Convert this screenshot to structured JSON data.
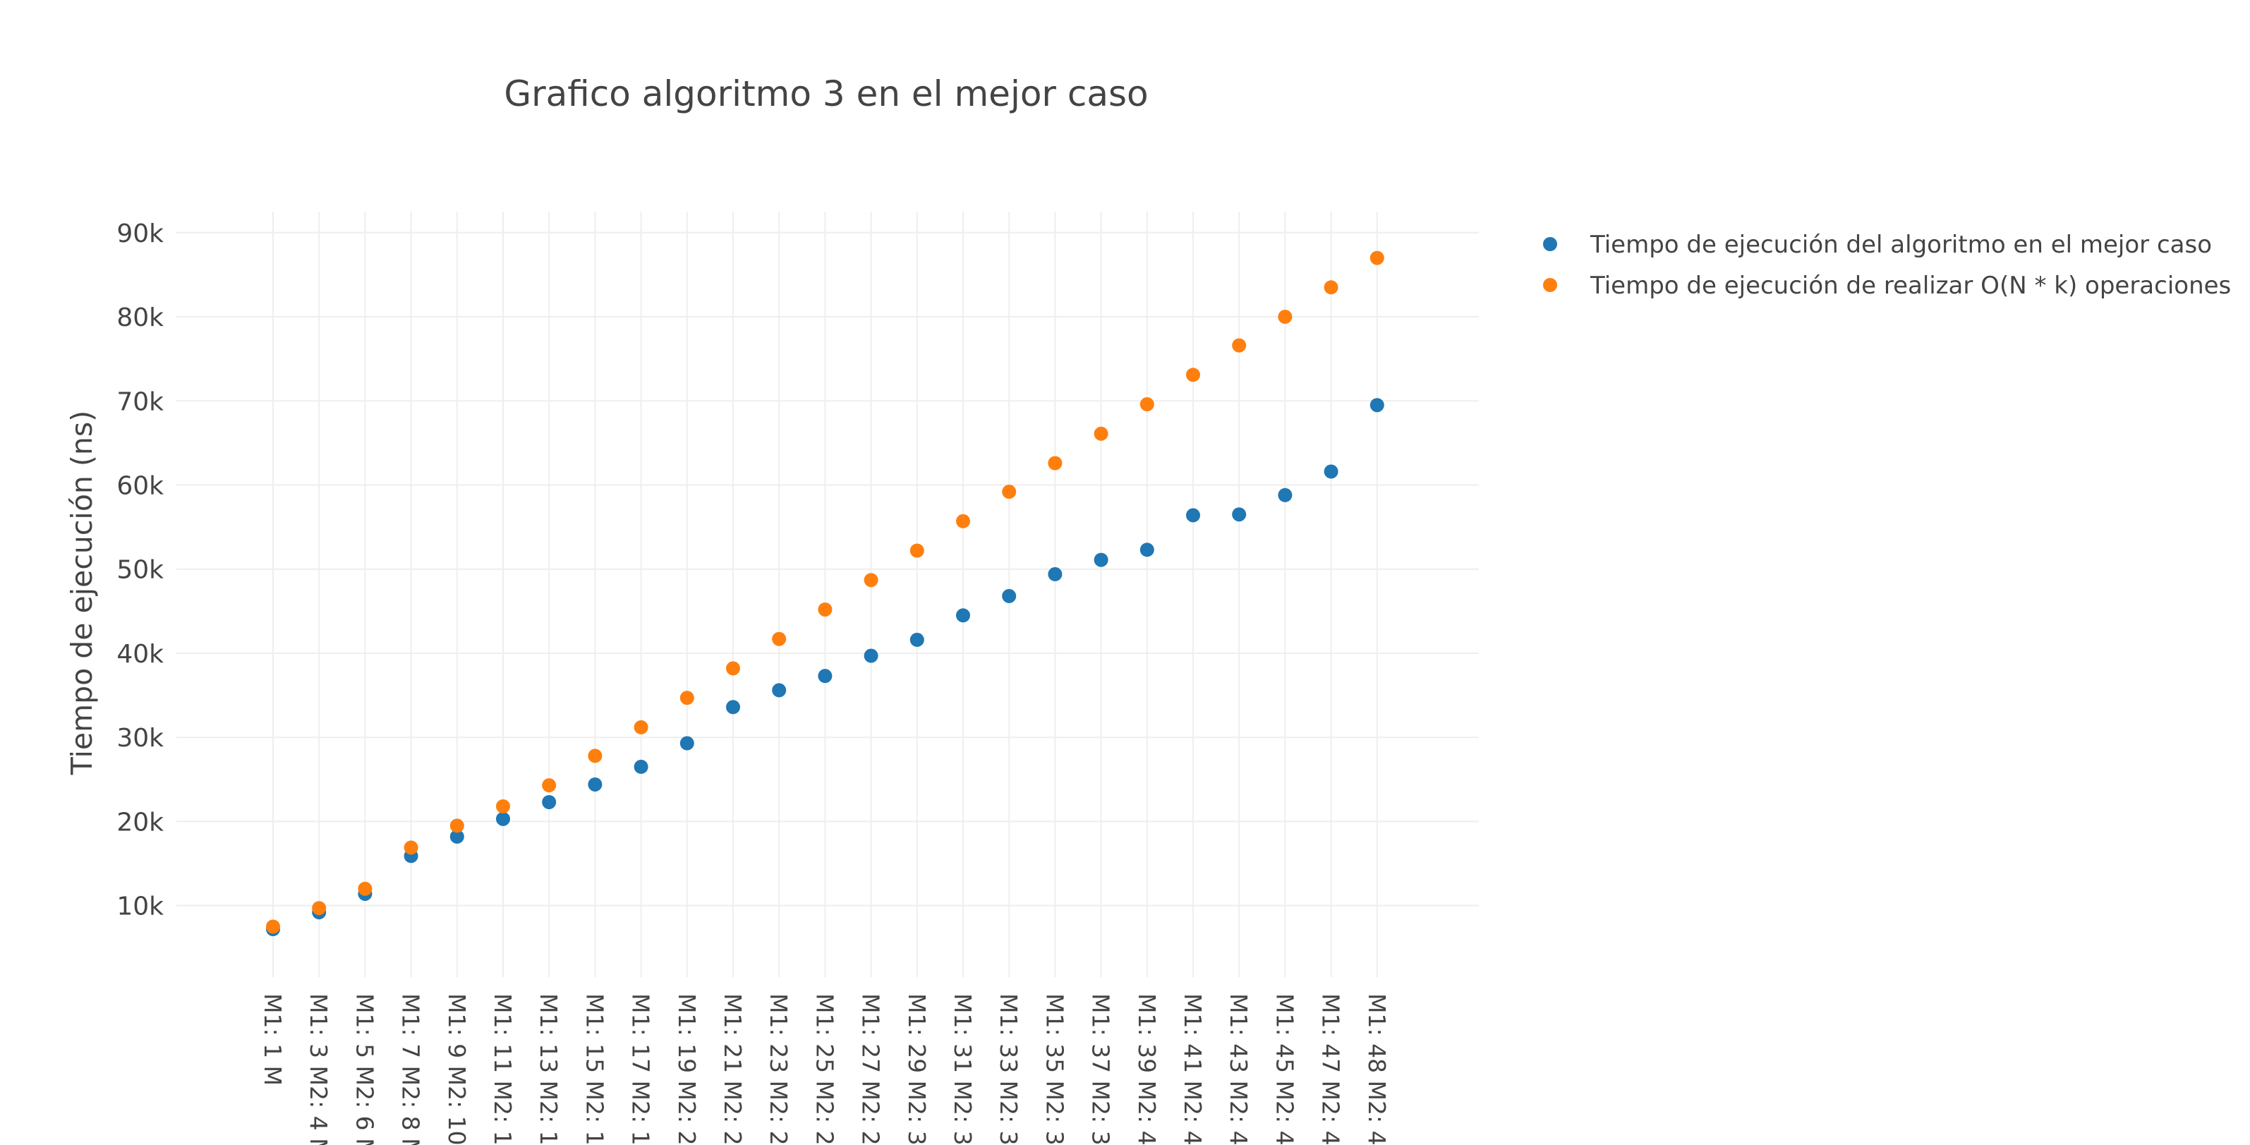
{
  "chart_data": {
    "type": "scatter",
    "title": "Grafico algoritmo 3 en el mejor caso",
    "xlabel": "",
    "ylabel": "Tiempo de ejecución (ns)",
    "ylim": [
      1500,
      92500
    ],
    "yticks": [
      10000,
      20000,
      30000,
      40000,
      50000,
      60000,
      70000,
      80000,
      90000
    ],
    "ytick_labels": [
      "10k",
      "20k",
      "30k",
      "40k",
      "50k",
      "60k",
      "70k",
      "80k",
      "90k"
    ],
    "grid": true,
    "legend_position": "top-right",
    "categories": [
      "M1: 1 M",
      "M1: 3 M2: 4 M",
      "M1: 5 M2: 6 M",
      "M1: 7 M2: 8 M",
      "M1: 9 M2: 10",
      "M1: 11 M2: 1",
      "M1: 13 M2: 1",
      "M1: 15 M2: 1",
      "M1: 17 M2: 1",
      "M1: 19 M2: 2",
      "M1: 21 M2: 2",
      "M1: 23 M2: 2",
      "M1: 25 M2: 2",
      "M1: 27 M2: 2",
      "M1: 29 M2: 3",
      "M1: 31 M2: 3",
      "M1: 33 M2: 3",
      "M1: 35 M2: 3",
      "M1: 37 M2: 3",
      "M1: 39 M2: 4",
      "M1: 41 M2: 4",
      "M1: 43 M2: 4",
      "M1: 45 M2: 4",
      "M1: 47 M2: 4",
      "M1: 48 M2: 4"
    ],
    "series": [
      {
        "name": "Tiempo de ejecución del algoritmo en el mejor caso",
        "color": "#1f77b4",
        "values": [
          7200,
          9200,
          11400,
          15900,
          18200,
          20300,
          22300,
          24400,
          26500,
          29300,
          33600,
          35600,
          37300,
          39700,
          41600,
          44500,
          46800,
          49400,
          51100,
          52300,
          56400,
          56500,
          58800,
          61600,
          69500
        ]
      },
      {
        "name": "Tiempo de ejecución de realizar O(N * k) operaciones",
        "color": "#ff7f0e",
        "values": [
          7500,
          9700,
          12000,
          16900,
          19500,
          21800,
          24300,
          27800,
          31200,
          34700,
          38200,
          41700,
          45200,
          48700,
          52200,
          55700,
          59200,
          62600,
          66100,
          69600,
          73100,
          76600,
          80000,
          83500,
          87000
        ]
      }
    ]
  }
}
